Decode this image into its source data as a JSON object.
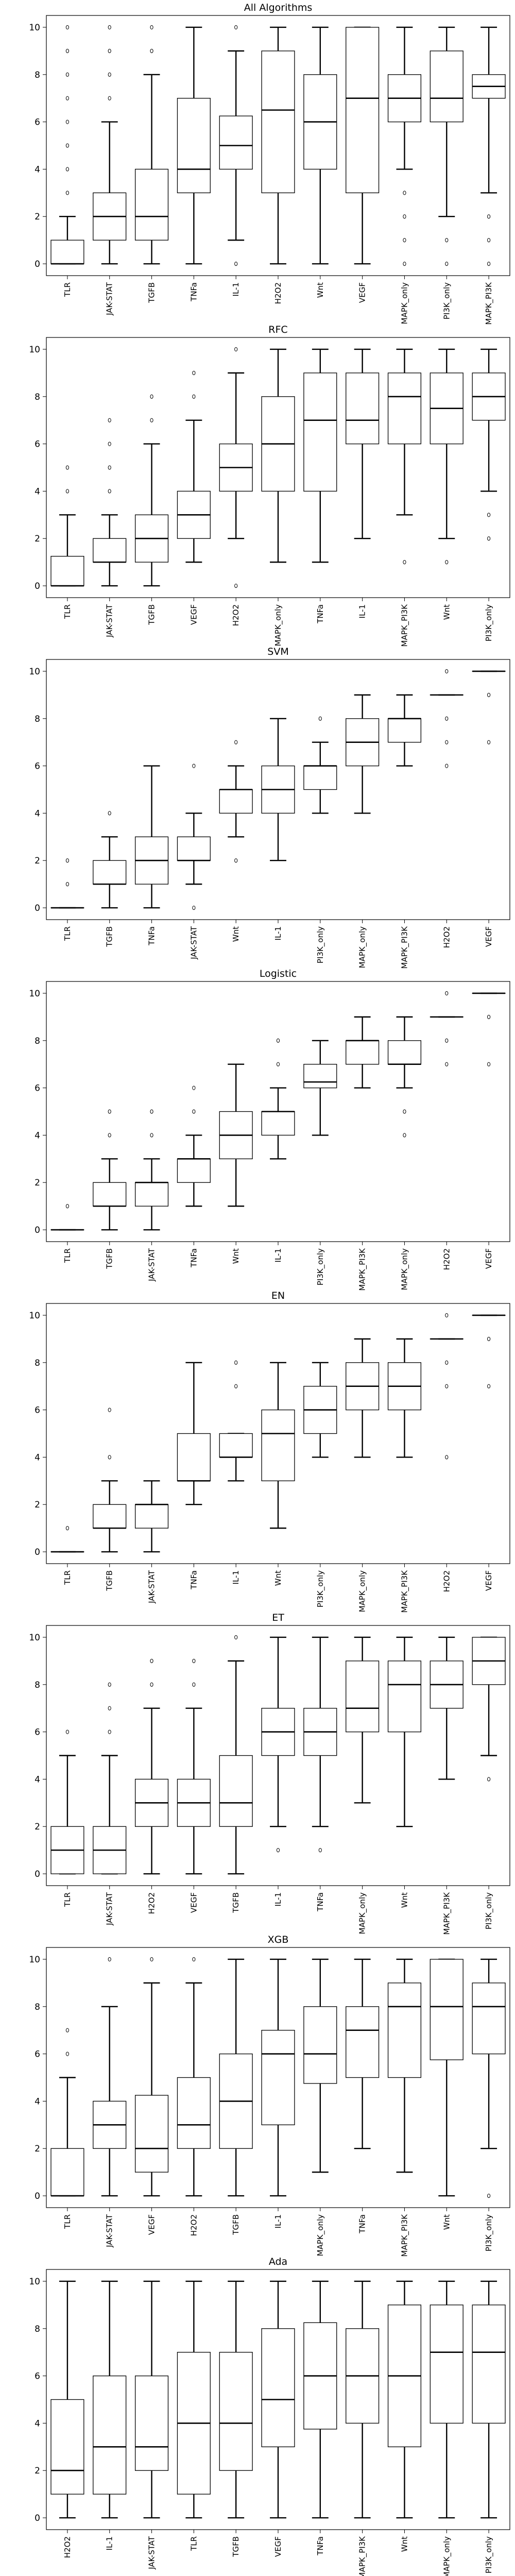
{
  "chart_data": [
    {
      "type": "box",
      "title": "All Algorithms",
      "xlabel": "",
      "ylabel": "",
      "ylim": [
        -0.5,
        10.5
      ],
      "yticks": [
        0,
        2,
        4,
        6,
        8,
        10
      ],
      "grid": false,
      "categories": [
        "TLR",
        "JAK-STAT",
        "TGFB",
        "TNFa",
        "IL-1",
        "H2O2",
        "Wnt",
        "VEGF",
        "MAPK_only",
        "PI3K_only",
        "MAPK_PI3K"
      ],
      "boxes": [
        {
          "whislo": 0,
          "q1": 0,
          "med": 0,
          "q3": 1,
          "whishi": 2,
          "fliers": [
            3,
            4,
            5,
            6,
            7,
            8,
            9,
            10
          ]
        },
        {
          "whislo": 0,
          "q1": 1,
          "med": 2,
          "q3": 3,
          "whishi": 6,
          "fliers": [
            7,
            8,
            9,
            10
          ]
        },
        {
          "whislo": 0,
          "q1": 1,
          "med": 2,
          "q3": 4,
          "whishi": 8,
          "fliers": [
            9,
            10
          ]
        },
        {
          "whislo": 0,
          "q1": 3,
          "med": 4,
          "q3": 7,
          "whishi": 10,
          "fliers": []
        },
        {
          "whislo": 1,
          "q1": 4,
          "med": 5,
          "q3": 6.25,
          "whishi": 9,
          "fliers": [
            0,
            10
          ]
        },
        {
          "whislo": 0,
          "q1": 3,
          "med": 6.5,
          "q3": 9,
          "whishi": 10,
          "fliers": []
        },
        {
          "whislo": 0,
          "q1": 4,
          "med": 6,
          "q3": 8,
          "whishi": 10,
          "fliers": []
        },
        {
          "whislo": 0,
          "q1": 3,
          "med": 7,
          "q3": 10,
          "whishi": 10,
          "fliers": []
        },
        {
          "whislo": 4,
          "q1": 6,
          "med": 7,
          "q3": 8,
          "whishi": 10,
          "fliers": [
            0,
            1,
            2,
            3
          ]
        },
        {
          "whislo": 2,
          "q1": 6,
          "med": 7,
          "q3": 9,
          "whishi": 10,
          "fliers": [
            0,
            1
          ]
        },
        {
          "whislo": 3,
          "q1": 7,
          "med": 7.5,
          "q3": 8,
          "whishi": 10,
          "fliers": [
            0,
            1,
            2
          ]
        }
      ]
    },
    {
      "type": "box",
      "title": "RFC",
      "xlabel": "",
      "ylabel": "",
      "ylim": [
        -0.5,
        10.5
      ],
      "yticks": [
        0,
        2,
        4,
        6,
        8,
        10
      ],
      "grid": false,
      "categories": [
        "TLR",
        "JAK-STAT",
        "TGFB",
        "VEGF",
        "H2O2",
        "MAPK_only",
        "TNFa",
        "IL-1",
        "MAPK_PI3K",
        "Wnt",
        "PI3K_only"
      ],
      "boxes": [
        {
          "whislo": 0,
          "q1": 0,
          "med": 0,
          "q3": 1.25,
          "whishi": 3,
          "fliers": [
            4,
            5
          ]
        },
        {
          "whislo": 0,
          "q1": 1,
          "med": 1,
          "q3": 2,
          "whishi": 3,
          "fliers": [
            4,
            5,
            6,
            7
          ]
        },
        {
          "whislo": 0,
          "q1": 1,
          "med": 2,
          "q3": 3,
          "whishi": 6,
          "fliers": [
            7,
            8
          ]
        },
        {
          "whislo": 1,
          "q1": 2,
          "med": 3,
          "q3": 4,
          "whishi": 7,
          "fliers": [
            8,
            9
          ]
        },
        {
          "whislo": 2,
          "q1": 4,
          "med": 5,
          "q3": 6,
          "whishi": 9,
          "fliers": [
            0,
            10
          ]
        },
        {
          "whislo": 1,
          "q1": 4,
          "med": 6,
          "q3": 8,
          "whishi": 10,
          "fliers": []
        },
        {
          "whislo": 1,
          "q1": 4,
          "med": 7,
          "q3": 9,
          "whishi": 10,
          "fliers": []
        },
        {
          "whislo": 2,
          "q1": 6,
          "med": 7,
          "q3": 9,
          "whishi": 10,
          "fliers": []
        },
        {
          "whislo": 3,
          "q1": 6,
          "med": 8,
          "q3": 9,
          "whishi": 10,
          "fliers": [
            1
          ]
        },
        {
          "whislo": 2,
          "q1": 6,
          "med": 7.5,
          "q3": 9,
          "whishi": 10,
          "fliers": [
            1
          ]
        },
        {
          "whislo": 4,
          "q1": 7,
          "med": 8,
          "q3": 9,
          "whishi": 10,
          "fliers": [
            2,
            3
          ]
        }
      ]
    },
    {
      "type": "box",
      "title": "SVM",
      "xlabel": "",
      "ylabel": "",
      "ylim": [
        -0.5,
        10.5
      ],
      "yticks": [
        0,
        2,
        4,
        6,
        8,
        10
      ],
      "grid": false,
      "categories": [
        "TLR",
        "TGFB",
        "TNFa",
        "JAK-STAT",
        "Wnt",
        "IL-1",
        "PI3K_only",
        "MAPK_only",
        "MAPK_PI3K",
        "H2O2",
        "VEGF"
      ],
      "boxes": [
        {
          "whislo": 0,
          "q1": 0,
          "med": 0,
          "q3": 0,
          "whishi": 0,
          "fliers": [
            1,
            2
          ]
        },
        {
          "whislo": 0,
          "q1": 1,
          "med": 1,
          "q3": 2,
          "whishi": 3,
          "fliers": [
            4
          ]
        },
        {
          "whislo": 0,
          "q1": 1,
          "med": 2,
          "q3": 3,
          "whishi": 6,
          "fliers": []
        },
        {
          "whislo": 1,
          "q1": 2,
          "med": 2,
          "q3": 3,
          "whishi": 4,
          "fliers": [
            0,
            6
          ]
        },
        {
          "whislo": 3,
          "q1": 4,
          "med": 5,
          "q3": 5,
          "whishi": 6,
          "fliers": [
            2,
            7
          ]
        },
        {
          "whislo": 2,
          "q1": 4,
          "med": 5,
          "q3": 6,
          "whishi": 8,
          "fliers": []
        },
        {
          "whislo": 4,
          "q1": 5,
          "med": 6,
          "q3": 6,
          "whishi": 7,
          "fliers": [
            8
          ]
        },
        {
          "whislo": 4,
          "q1": 6,
          "med": 7,
          "q3": 8,
          "whishi": 9,
          "fliers": []
        },
        {
          "whislo": 6,
          "q1": 7,
          "med": 8,
          "q3": 8,
          "whishi": 9,
          "fliers": []
        },
        {
          "whislo": 9,
          "q1": 9,
          "med": 9,
          "q3": 9,
          "whishi": 9,
          "fliers": [
            6,
            7,
            8,
            10
          ]
        },
        {
          "whislo": 10,
          "q1": 10,
          "med": 10,
          "q3": 10,
          "whishi": 10,
          "fliers": [
            7,
            9
          ]
        }
      ]
    },
    {
      "type": "box",
      "title": "Logistic",
      "xlabel": "",
      "ylabel": "",
      "ylim": [
        -0.5,
        10.5
      ],
      "yticks": [
        0,
        2,
        4,
        6,
        8,
        10
      ],
      "grid": false,
      "categories": [
        "TLR",
        "TGFB",
        "JAK-STAT",
        "TNFa",
        "Wnt",
        "IL-1",
        "PI3K_only",
        "MAPK_PI3K",
        "MAPK_only",
        "H2O2",
        "VEGF"
      ],
      "boxes": [
        {
          "whislo": 0,
          "q1": 0,
          "med": 0,
          "q3": 0,
          "whishi": 0,
          "fliers": [
            1
          ]
        },
        {
          "whislo": 0,
          "q1": 1,
          "med": 1,
          "q3": 2,
          "whishi": 3,
          "fliers": [
            4,
            5
          ]
        },
        {
          "whislo": 0,
          "q1": 1,
          "med": 2,
          "q3": 2,
          "whishi": 3,
          "fliers": [
            4,
            5
          ]
        },
        {
          "whislo": 1,
          "q1": 2,
          "med": 3,
          "q3": 3,
          "whishi": 4,
          "fliers": [
            5,
            6
          ]
        },
        {
          "whislo": 1,
          "q1": 3,
          "med": 4,
          "q3": 5,
          "whishi": 7,
          "fliers": []
        },
        {
          "whislo": 3,
          "q1": 4,
          "med": 5,
          "q3": 5,
          "whishi": 6,
          "fliers": [
            7,
            8
          ]
        },
        {
          "whislo": 4,
          "q1": 6,
          "med": 6.25,
          "q3": 7,
          "whishi": 8,
          "fliers": []
        },
        {
          "whislo": 6,
          "q1": 7,
          "med": 8,
          "q3": 8,
          "whishi": 9,
          "fliers": []
        },
        {
          "whislo": 6,
          "q1": 7,
          "med": 7,
          "q3": 8,
          "whishi": 9,
          "fliers": [
            4,
            5
          ]
        },
        {
          "whislo": 9,
          "q1": 9,
          "med": 9,
          "q3": 9,
          "whishi": 9,
          "fliers": [
            7,
            8,
            10
          ]
        },
        {
          "whislo": 10,
          "q1": 10,
          "med": 10,
          "q3": 10,
          "whishi": 10,
          "fliers": [
            7,
            9
          ]
        }
      ]
    },
    {
      "type": "box",
      "title": "EN",
      "xlabel": "",
      "ylabel": "",
      "ylim": [
        -0.5,
        10.5
      ],
      "yticks": [
        0,
        2,
        4,
        6,
        8,
        10
      ],
      "grid": false,
      "categories": [
        "TLR",
        "TGFB",
        "JAK-STAT",
        "TNFa",
        "IL-1",
        "Wnt",
        "PI3K_only",
        "MAPK_only",
        "MAPK_PI3K",
        "H2O2",
        "VEGF"
      ],
      "boxes": [
        {
          "whislo": 0,
          "q1": 0,
          "med": 0,
          "q3": 0,
          "whishi": 0,
          "fliers": [
            1
          ]
        },
        {
          "whislo": 0,
          "q1": 1,
          "med": 1,
          "q3": 2,
          "whishi": 3,
          "fliers": [
            4,
            6
          ]
        },
        {
          "whislo": 0,
          "q1": 1,
          "med": 2,
          "q3": 2,
          "whishi": 3,
          "fliers": []
        },
        {
          "whislo": 2,
          "q1": 3,
          "med": 3,
          "q3": 5,
          "whishi": 8,
          "fliers": []
        },
        {
          "whislo": 3,
          "q1": 4,
          "med": 4,
          "q3": 5,
          "whishi": 5,
          "fliers": [
            7,
            8
          ]
        },
        {
          "whislo": 1,
          "q1": 3,
          "med": 5,
          "q3": 6,
          "whishi": 8,
          "fliers": []
        },
        {
          "whislo": 4,
          "q1": 5,
          "med": 6,
          "q3": 7,
          "whishi": 8,
          "fliers": []
        },
        {
          "whislo": 4,
          "q1": 6,
          "med": 7,
          "q3": 8,
          "whishi": 9,
          "fliers": []
        },
        {
          "whislo": 4,
          "q1": 6,
          "med": 7,
          "q3": 8,
          "whishi": 9,
          "fliers": []
        },
        {
          "whislo": 9,
          "q1": 9,
          "med": 9,
          "q3": 9,
          "whishi": 9,
          "fliers": [
            4,
            7,
            8,
            10
          ]
        },
        {
          "whislo": 10,
          "q1": 10,
          "med": 10,
          "q3": 10,
          "whishi": 10,
          "fliers": [
            7,
            9
          ]
        }
      ]
    },
    {
      "type": "box",
      "title": "ET",
      "xlabel": "",
      "ylabel": "",
      "ylim": [
        -0.5,
        10.5
      ],
      "yticks": [
        0,
        2,
        4,
        6,
        8,
        10
      ],
      "grid": false,
      "categories": [
        "TLR",
        "JAK-STAT",
        "H2O2",
        "VEGF",
        "TGFB",
        "IL-1",
        "TNFa",
        "MAPK_only",
        "Wnt",
        "MAPK_PI3K",
        "PI3K_only"
      ],
      "boxes": [
        {
          "whislo": 0,
          "q1": 0,
          "med": 1,
          "q3": 2,
          "whishi": 5,
          "fliers": [
            6
          ]
        },
        {
          "whislo": 0,
          "q1": 0,
          "med": 1,
          "q3": 2,
          "whishi": 5,
          "fliers": [
            6,
            7,
            8
          ]
        },
        {
          "whislo": 0,
          "q1": 2,
          "med": 3,
          "q3": 4,
          "whishi": 7,
          "fliers": [
            8,
            9
          ]
        },
        {
          "whislo": 0,
          "q1": 2,
          "med": 3,
          "q3": 4,
          "whishi": 7,
          "fliers": [
            8,
            9
          ]
        },
        {
          "whislo": 0,
          "q1": 2,
          "med": 3,
          "q3": 5,
          "whishi": 9,
          "fliers": [
            10
          ]
        },
        {
          "whislo": 2,
          "q1": 5,
          "med": 6,
          "q3": 7,
          "whishi": 10,
          "fliers": [
            1
          ]
        },
        {
          "whislo": 2,
          "q1": 5,
          "med": 6,
          "q3": 7,
          "whishi": 10,
          "fliers": [
            1
          ]
        },
        {
          "whislo": 3,
          "q1": 6,
          "med": 7,
          "q3": 9,
          "whishi": 10,
          "fliers": []
        },
        {
          "whislo": 2,
          "q1": 6,
          "med": 8,
          "q3": 9,
          "whishi": 10,
          "fliers": []
        },
        {
          "whislo": 4,
          "q1": 7,
          "med": 8,
          "q3": 9,
          "whishi": 10,
          "fliers": []
        },
        {
          "whislo": 5,
          "q1": 8,
          "med": 9,
          "q3": 10,
          "whishi": 10,
          "fliers": [
            4
          ]
        }
      ]
    },
    {
      "type": "box",
      "title": "XGB",
      "xlabel": "",
      "ylabel": "",
      "ylim": [
        -0.5,
        10.5
      ],
      "yticks": [
        0,
        2,
        4,
        6,
        8,
        10
      ],
      "grid": false,
      "categories": [
        "TLR",
        "JAK-STAT",
        "VEGF",
        "H2O2",
        "TGFB",
        "IL-1",
        "MAPK_only",
        "TNFa",
        "MAPK_PI3K",
        "Wnt",
        "PI3K_only"
      ],
      "boxes": [
        {
          "whislo": 0,
          "q1": 0,
          "med": 0,
          "q3": 2,
          "whishi": 5,
          "fliers": [
            6,
            7
          ]
        },
        {
          "whislo": 0,
          "q1": 2,
          "med": 3,
          "q3": 4,
          "whishi": 8,
          "fliers": [
            10
          ]
        },
        {
          "whislo": 0,
          "q1": 1,
          "med": 2,
          "q3": 4.25,
          "whishi": 9,
          "fliers": [
            10
          ]
        },
        {
          "whislo": 0,
          "q1": 2,
          "med": 3,
          "q3": 5,
          "whishi": 9,
          "fliers": [
            10
          ]
        },
        {
          "whislo": 0,
          "q1": 2,
          "med": 4,
          "q3": 6,
          "whishi": 10,
          "fliers": []
        },
        {
          "whislo": 0,
          "q1": 3,
          "med": 6,
          "q3": 7,
          "whishi": 10,
          "fliers": []
        },
        {
          "whislo": 1,
          "q1": 4.75,
          "med": 6,
          "q3": 8,
          "whishi": 10,
          "fliers": []
        },
        {
          "whislo": 2,
          "q1": 5,
          "med": 7,
          "q3": 8,
          "whishi": 10,
          "fliers": []
        },
        {
          "whislo": 1,
          "q1": 5,
          "med": 8,
          "q3": 9,
          "whishi": 10,
          "fliers": []
        },
        {
          "whislo": 0,
          "q1": 5.75,
          "med": 8,
          "q3": 10,
          "whishi": 10,
          "fliers": []
        },
        {
          "whislo": 2,
          "q1": 6,
          "med": 8,
          "q3": 9,
          "whishi": 10,
          "fliers": [
            0
          ]
        }
      ]
    },
    {
      "type": "box",
      "title": "Ada",
      "xlabel": "",
      "ylabel": "",
      "ylim": [
        -0.5,
        10.5
      ],
      "yticks": [
        0,
        2,
        4,
        6,
        8,
        10
      ],
      "grid": false,
      "categories": [
        "H2O2",
        "IL-1",
        "JAK-STAT",
        "TLR",
        "TGFB",
        "VEGF",
        "TNFa",
        "MAPK_PI3K",
        "Wnt",
        "MAPK_only",
        "PI3K_only"
      ],
      "boxes": [
        {
          "whislo": 0,
          "q1": 1,
          "med": 2,
          "q3": 5,
          "whishi": 10,
          "fliers": []
        },
        {
          "whislo": 0,
          "q1": 1,
          "med": 3,
          "q3": 6,
          "whishi": 10,
          "fliers": []
        },
        {
          "whislo": 0,
          "q1": 2,
          "med": 3,
          "q3": 6,
          "whishi": 10,
          "fliers": []
        },
        {
          "whislo": 0,
          "q1": 1,
          "med": 4,
          "q3": 7,
          "whishi": 10,
          "fliers": []
        },
        {
          "whislo": 0,
          "q1": 2,
          "med": 4,
          "q3": 7,
          "whishi": 10,
          "fliers": []
        },
        {
          "whislo": 0,
          "q1": 3,
          "med": 5,
          "q3": 8,
          "whishi": 10,
          "fliers": []
        },
        {
          "whislo": 0,
          "q1": 3.75,
          "med": 6,
          "q3": 8.25,
          "whishi": 10,
          "fliers": []
        },
        {
          "whislo": 0,
          "q1": 4,
          "med": 6,
          "q3": 8,
          "whishi": 10,
          "fliers": []
        },
        {
          "whislo": 0,
          "q1": 3,
          "med": 6,
          "q3": 9,
          "whishi": 10,
          "fliers": []
        },
        {
          "whislo": 0,
          "q1": 4,
          "med": 7,
          "q3": 9,
          "whishi": 10,
          "fliers": []
        },
        {
          "whislo": 0,
          "q1": 4,
          "med": 7,
          "q3": 9,
          "whishi": 10,
          "fliers": []
        }
      ]
    }
  ]
}
